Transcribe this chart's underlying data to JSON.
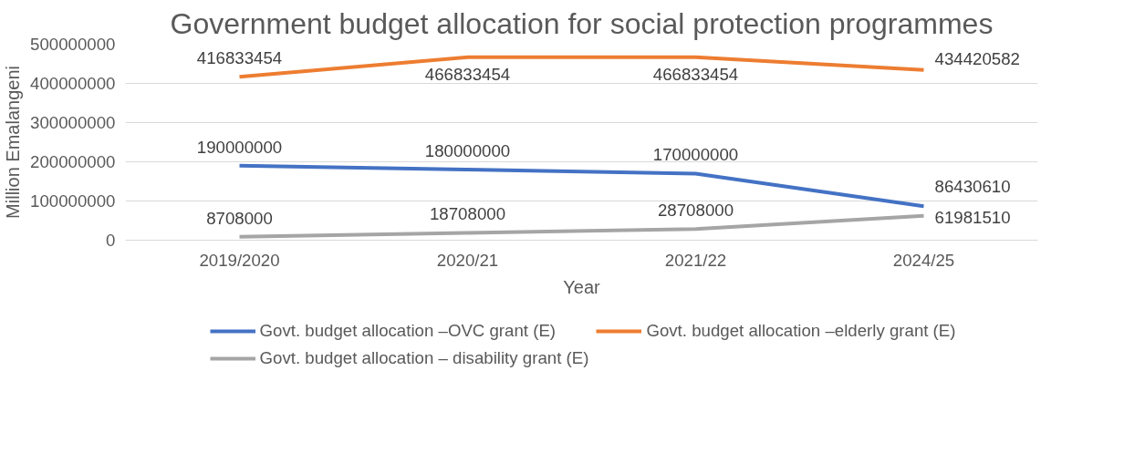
{
  "chart_data": {
    "type": "line",
    "title": "Government budget allocation for social protection programmes",
    "xlabel": "Year",
    "ylabel": "Million Emalangeni",
    "categories": [
      "2019/2020",
      "2020/21",
      "2021/22",
      "2024/25"
    ],
    "series": [
      {
        "name": "Govt. budget allocation –OVC grant (E)",
        "color": "#4472c4",
        "values": [
          190000000,
          180000000,
          170000000,
          86430610
        ]
      },
      {
        "name": "Govt. budget allocation –elderly grant (E)",
        "color": "#ed7d31",
        "values": [
          416833454,
          466833454,
          466833454,
          434420582
        ]
      },
      {
        "name": "Govt. budget allocation – disability grant (E)",
        "color": "#a5a5a5",
        "values": [
          8708000,
          18708000,
          28708000,
          61981510
        ]
      }
    ],
    "ylim": [
      0,
      500000000
    ],
    "yticks": [
      0,
      100000000,
      200000000,
      300000000,
      400000000,
      500000000
    ],
    "grid": "y",
    "legend": "bottom",
    "data_labels": true,
    "marker": "none",
    "line_style": "solid"
  }
}
